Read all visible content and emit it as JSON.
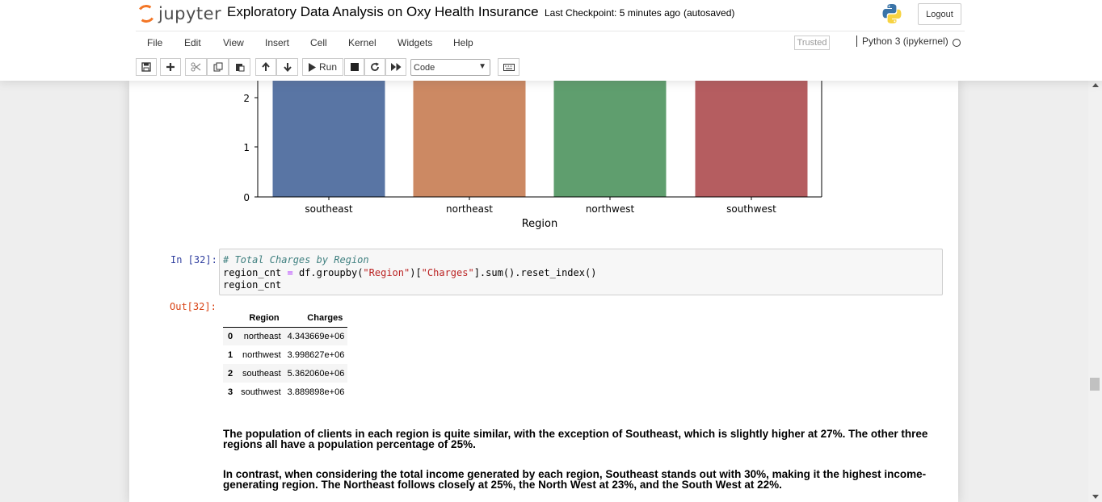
{
  "header": {
    "logo_text": "jupyter",
    "notebook_name": "Exploratory Data Analysis on Oxy Health Insurance",
    "checkpoint": "Last Checkpoint: 5 minutes ago",
    "autosave": "(autosaved)",
    "logout_label": "Logout"
  },
  "menubar": {
    "items": [
      "File",
      "Edit",
      "View",
      "Insert",
      "Cell",
      "Kernel",
      "Widgets",
      "Help"
    ],
    "trusted_label": "Trusted",
    "kernel_name": "Python 3 (ipykernel)"
  },
  "toolbar": {
    "run_label": "Run",
    "cell_type": "Code",
    "buttons": [
      "save-icon",
      "plus-icon",
      "cut-icon",
      "copy-icon",
      "paste-icon",
      "arrow-up-icon",
      "arrow-down-icon",
      "play-icon",
      "stop-icon",
      "restart-icon",
      "fast-forward-icon",
      "keyboard-icon"
    ]
  },
  "chart_data": {
    "type": "bar",
    "categories": [
      "southeast",
      "northeast",
      "northwest",
      "southwest"
    ],
    "colors": [
      "#5975a4",
      "#cc8963",
      "#5f9e6e",
      "#b55d60"
    ],
    "xlabel": "Region",
    "yticks": [
      0,
      1,
      2
    ],
    "note": "bars extend above visible area (cropped by scroll)"
  },
  "cell_in": {
    "prompt": "In [32]:",
    "code_line1": "# Total Charges by Region",
    "code_line2_a": "region_cnt ",
    "code_line2_op": "=",
    "code_line2_b": " df.groupby(",
    "code_line2_s1": "\"Region\"",
    "code_line2_c": ")[",
    "code_line2_s2": "\"Charges\"",
    "code_line2_d": "].sum().reset_index()",
    "code_line3": "region_cnt"
  },
  "cell_out": {
    "prompt": "Out[32]:",
    "table": {
      "columns": [
        "",
        "Region",
        "Charges"
      ],
      "rows": [
        [
          "0",
          "northeast",
          "4.343669e+06"
        ],
        [
          "1",
          "northwest",
          "3.998627e+06"
        ],
        [
          "2",
          "southeast",
          "5.362060e+06"
        ],
        [
          "3",
          "southwest",
          "3.889898e+06"
        ]
      ]
    }
  },
  "markdown": {
    "para1": "The population of clients in each region is quite similar, with the exception of Southeast, which is slightly higher at 27%. The other three regions all have a population percentage of 25%.",
    "para2": "In contrast, when considering the total income generated by each region, Southeast stands out with 30%, making it the highest income-generating region. The Northeast follows closely at 25%, the North West at 23%, and the South West at 22%."
  }
}
